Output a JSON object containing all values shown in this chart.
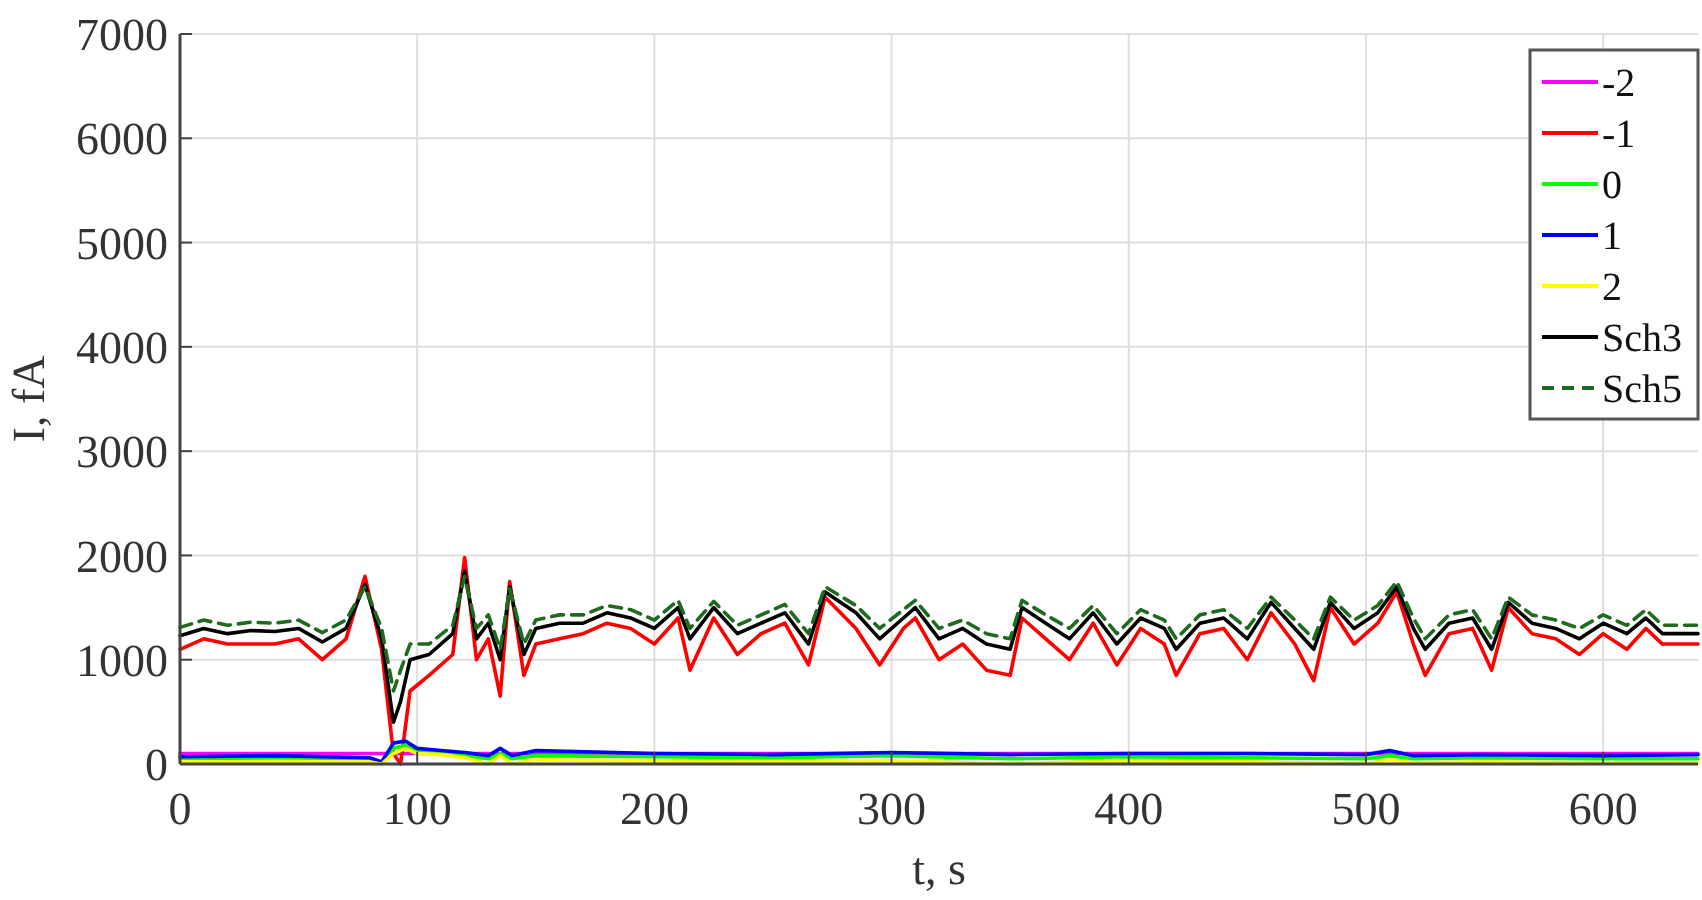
{
  "chart_data": {
    "type": "line",
    "xlabel": "t, s",
    "ylabel": "I, fA",
    "x": [
      0,
      10,
      20,
      30,
      40,
      50,
      60,
      70,
      78,
      85,
      90,
      93,
      97,
      105,
      115,
      120,
      125,
      130,
      135,
      139,
      145,
      150,
      160,
      170,
      180,
      190,
      200,
      210,
      215,
      225,
      235,
      245,
      255,
      265,
      272,
      285,
      295,
      305,
      310,
      320,
      330,
      340,
      350,
      355,
      365,
      375,
      385,
      395,
      405,
      415,
      420,
      430,
      440,
      450,
      460,
      470,
      478,
      485,
      495,
      505,
      513,
      520,
      525,
      535,
      545,
      553,
      560,
      570,
      580,
      590,
      600,
      610,
      618,
      625,
      640
    ],
    "xlim": [
      0,
      640
    ],
    "xticks": [
      0,
      100,
      200,
      300,
      400,
      500,
      600
    ],
    "ylim": [
      0,
      7000
    ],
    "yticks": [
      0,
      1000,
      2000,
      3000,
      4000,
      5000,
      6000,
      7000
    ],
    "grid": true,
    "legend": "top right",
    "line_style": "solid",
    "series": [
      {
        "name": "-2",
        "color": "#ff00ff",
        "x": [
          0,
          640
        ],
        "values": [
          100,
          100
        ]
      },
      {
        "name": "-1",
        "color": "#ff0000",
        "values": [
          1100,
          1200,
          1150,
          1150,
          1150,
          1200,
          1000,
          1200,
          1800,
          1100,
          100,
          0,
          700,
          850,
          1050,
          1980,
          1000,
          1200,
          650,
          1750,
          850,
          1150,
          1200,
          1250,
          1350,
          1300,
          1150,
          1400,
          900,
          1400,
          1050,
          1250,
          1350,
          950,
          1600,
          1300,
          950,
          1300,
          1400,
          1000,
          1150,
          900,
          850,
          1400,
          1200,
          1000,
          1350,
          950,
          1300,
          1150,
          850,
          1250,
          1300,
          1000,
          1450,
          1150,
          800,
          1500,
          1150,
          1350,
          1650,
          1150,
          850,
          1250,
          1300,
          900,
          1500,
          1250,
          1200,
          1050,
          1250,
          1100,
          1300,
          1150,
          1150
        ]
      },
      {
        "name": "0",
        "color": "#00ff00",
        "x": [
          0,
          40,
          80,
          85,
          90,
          95,
          100,
          110,
          120,
          130,
          135,
          140,
          150,
          200,
          250,
          300,
          350,
          400,
          450,
          500,
          510,
          520,
          550,
          600,
          640
        ],
        "values": [
          50,
          60,
          50,
          0,
          150,
          180,
          120,
          100,
          80,
          50,
          100,
          50,
          80,
          70,
          60,
          80,
          50,
          70,
          60,
          50,
          80,
          50,
          60,
          50,
          50
        ]
      },
      {
        "name": "1",
        "color": "#0000ff",
        "x": [
          0,
          40,
          80,
          85,
          90,
          95,
          100,
          110,
          120,
          130,
          135,
          140,
          150,
          200,
          250,
          300,
          350,
          400,
          450,
          500,
          510,
          520,
          550,
          600,
          640
        ],
        "values": [
          70,
          80,
          60,
          20,
          200,
          220,
          150,
          130,
          110,
          80,
          150,
          80,
          130,
          100,
          90,
          110,
          90,
          100,
          100,
          90,
          130,
          80,
          90,
          80,
          90
        ]
      },
      {
        "name": "2",
        "color": "#ffff00",
        "x": [
          0,
          40,
          80,
          85,
          90,
          95,
          100,
          110,
          120,
          130,
          135,
          140,
          150,
          200,
          250,
          300,
          350,
          400,
          450,
          500,
          510,
          520,
          550,
          600,
          640
        ],
        "values": [
          20,
          20,
          20,
          0,
          100,
          150,
          100,
          90,
          60,
          0,
          80,
          0,
          40,
          30,
          20,
          30,
          0,
          30,
          20,
          0,
          40,
          10,
          20,
          10,
          10
        ]
      },
      {
        "name": "Sch3",
        "color": "#000000",
        "values": [
          1230,
          1300,
          1250,
          1280,
          1270,
          1300,
          1170,
          1300,
          1720,
          1200,
          400,
          600,
          1000,
          1050,
          1250,
          1850,
          1200,
          1350,
          1000,
          1700,
          1050,
          1300,
          1350,
          1350,
          1450,
          1400,
          1300,
          1500,
          1200,
          1500,
          1250,
          1350,
          1450,
          1150,
          1650,
          1450,
          1200,
          1400,
          1500,
          1200,
          1300,
          1150,
          1100,
          1500,
          1350,
          1200,
          1450,
          1150,
          1400,
          1300,
          1100,
          1350,
          1400,
          1200,
          1550,
          1300,
          1100,
          1550,
          1300,
          1450,
          1700,
          1300,
          1100,
          1350,
          1400,
          1100,
          1550,
          1350,
          1300,
          1200,
          1350,
          1250,
          1400,
          1250,
          1250
        ]
      },
      {
        "name": "Sch5",
        "color": "#1e6b1e",
        "line_style": "dashed",
        "values": [
          1310,
          1380,
          1330,
          1360,
          1350,
          1380,
          1260,
          1380,
          1700,
          1300,
          700,
          900,
          1150,
          1150,
          1330,
          1800,
          1300,
          1430,
          1100,
          1680,
          1150,
          1380,
          1430,
          1430,
          1520,
          1480,
          1380,
          1570,
          1300,
          1560,
          1330,
          1430,
          1530,
          1250,
          1700,
          1520,
          1300,
          1480,
          1570,
          1300,
          1380,
          1250,
          1200,
          1570,
          1430,
          1300,
          1520,
          1250,
          1480,
          1380,
          1200,
          1430,
          1480,
          1300,
          1600,
          1380,
          1200,
          1600,
          1380,
          1520,
          1750,
          1400,
          1200,
          1430,
          1480,
          1200,
          1600,
          1430,
          1380,
          1300,
          1430,
          1330,
          1480,
          1330,
          1330
        ]
      }
    ]
  }
}
